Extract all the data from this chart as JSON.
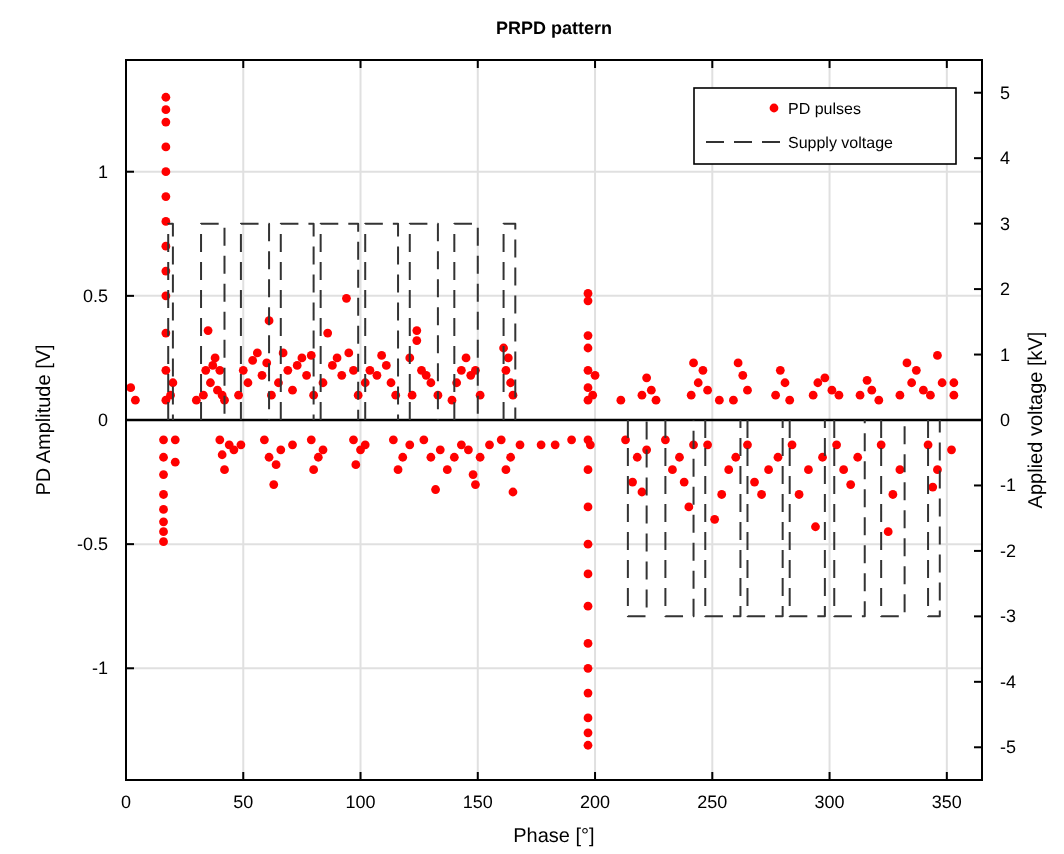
{
  "chart_data": {
    "type": "scatter",
    "title": "PRPD pattern",
    "xlabel": "Phase [°]",
    "ylabel": "PD Amplitude [V]",
    "y2label": "Applied voltage [kV]",
    "xlim": [
      0,
      365
    ],
    "xticks": [
      0,
      50,
      100,
      150,
      200,
      250,
      300,
      350
    ],
    "ylim": [
      -1.45,
      1.45
    ],
    "yticks": [
      -1,
      -0.5,
      0,
      0.5,
      1
    ],
    "y2lim": [
      -5.5,
      5.5
    ],
    "y2ticks": [
      -5,
      -4,
      -3,
      -2,
      -1,
      0,
      1,
      2,
      3,
      4,
      5
    ],
    "grid": true,
    "legend": "top right",
    "ref_lines": [
      {
        "axis": "y",
        "value": 0,
        "color": "#000000"
      }
    ],
    "series": [
      {
        "name": "PD pulses",
        "marker": "circle",
        "color": "#ff0000",
        "x": [
          2,
          4,
          17,
          17,
          17,
          17,
          17,
          17,
          17,
          17,
          17,
          17,
          17,
          17,
          17,
          19,
          20,
          30,
          33,
          34,
          35,
          36,
          37,
          38,
          39,
          40,
          41,
          42,
          48,
          50,
          52,
          54,
          56,
          58,
          60,
          61,
          62,
          65,
          67,
          69,
          71,
          73,
          75,
          77,
          79,
          80,
          84,
          86,
          88,
          90,
          92,
          94,
          95,
          97,
          99,
          102,
          104,
          107,
          109,
          111,
          113,
          115,
          121,
          122,
          124,
          124,
          126,
          128,
          130,
          133,
          139,
          141,
          143,
          145,
          147,
          149,
          151,
          161,
          162,
          163,
          164,
          165,
          197,
          197,
          197,
          197,
          197,
          197,
          197,
          199,
          200,
          211,
          220,
          222,
          224,
          226,
          241,
          242,
          244,
          246,
          248,
          253,
          259,
          261,
          263,
          265,
          277,
          279,
          281,
          283,
          293,
          295,
          298,
          301,
          304,
          313,
          316,
          318,
          321,
          330,
          333,
          335,
          337,
          340,
          343,
          346,
          348,
          353,
          353,
          16,
          16,
          16,
          16,
          16,
          16,
          16,
          16,
          21,
          21,
          40,
          41,
          42,
          44,
          46,
          49,
          59,
          61,
          63,
          64,
          66,
          71,
          79,
          80,
          82,
          84,
          97,
          98,
          100,
          102,
          114,
          116,
          118,
          121,
          127,
          130,
          132,
          134,
          137,
          140,
          143,
          146,
          148,
          149,
          151,
          155,
          160,
          162,
          164,
          165,
          168,
          177,
          183,
          190,
          197,
          197,
          197,
          197,
          197,
          197,
          197,
          197,
          197,
          197,
          197,
          197,
          198,
          213,
          216,
          218,
          220,
          222,
          230,
          233,
          236,
          238,
          240,
          242,
          248,
          251,
          254,
          257,
          260,
          265,
          268,
          271,
          274,
          278,
          284,
          287,
          291,
          294,
          297,
          303,
          306,
          309,
          312,
          322,
          325,
          327,
          330,
          342,
          344,
          346,
          352
        ],
        "values": [
          0.13,
          0.08,
          0.08,
          0.2,
          0.35,
          0.5,
          0.6,
          0.7,
          0.8,
          0.9,
          1.0,
          1.1,
          1.2,
          1.25,
          1.3,
          0.1,
          0.15,
          0.08,
          0.1,
          0.2,
          0.36,
          0.15,
          0.22,
          0.25,
          0.12,
          0.2,
          0.1,
          0.08,
          0.1,
          0.2,
          0.15,
          0.24,
          0.27,
          0.18,
          0.23,
          0.4,
          0.1,
          0.15,
          0.27,
          0.2,
          0.12,
          0.22,
          0.25,
          0.18,
          0.26,
          0.1,
          0.15,
          0.35,
          0.22,
          0.25,
          0.18,
          0.49,
          0.27,
          0.2,
          0.1,
          0.15,
          0.2,
          0.18,
          0.26,
          0.22,
          0.15,
          0.1,
          0.25,
          0.1,
          0.36,
          0.32,
          0.2,
          0.18,
          0.15,
          0.1,
          0.08,
          0.15,
          0.2,
          0.25,
          0.18,
          0.2,
          0.1,
          0.29,
          0.2,
          0.25,
          0.15,
          0.1,
          0.08,
          0.13,
          0.2,
          0.29,
          0.34,
          0.48,
          0.51,
          0.1,
          0.18,
          0.08,
          0.1,
          0.17,
          0.12,
          0.08,
          0.1,
          0.23,
          0.15,
          0.2,
          0.12,
          0.08,
          0.08,
          0.23,
          0.18,
          0.12,
          0.1,
          0.2,
          0.15,
          0.08,
          0.1,
          0.15,
          0.17,
          0.12,
          0.1,
          0.1,
          0.16,
          0.12,
          0.08,
          0.1,
          0.23,
          0.15,
          0.2,
          0.12,
          0.1,
          0.26,
          0.15,
          0.15,
          0.1,
          -0.08,
          -0.15,
          -0.22,
          -0.3,
          -0.36,
          -0.41,
          -0.45,
          -0.49,
          -0.08,
          -0.17,
          -0.08,
          -0.14,
          -0.2,
          -0.1,
          -0.12,
          -0.1,
          -0.08,
          -0.15,
          -0.26,
          -0.18,
          -0.12,
          -0.1,
          -0.08,
          -0.2,
          -0.15,
          -0.12,
          -0.08,
          -0.18,
          -0.12,
          -0.1,
          -0.08,
          -0.2,
          -0.15,
          -0.1,
          -0.08,
          -0.15,
          -0.28,
          -0.12,
          -0.2,
          -0.15,
          -0.1,
          -0.12,
          -0.22,
          -0.26,
          -0.15,
          -0.1,
          -0.08,
          -0.2,
          -0.15,
          -0.29,
          -0.1,
          -0.1,
          -0.1,
          -0.08,
          -0.08,
          -0.2,
          -0.35,
          -0.5,
          -0.62,
          -0.75,
          -0.9,
          -1.0,
          -1.1,
          -1.2,
          -1.26,
          -1.31,
          -0.1,
          -0.08,
          -0.25,
          -0.15,
          -0.29,
          -0.12,
          -0.08,
          -0.2,
          -0.15,
          -0.25,
          -0.35,
          -0.1,
          -0.1,
          -0.4,
          -0.3,
          -0.2,
          -0.15,
          -0.1,
          -0.25,
          -0.3,
          -0.2,
          -0.15,
          -0.1,
          -0.3,
          -0.2,
          -0.43,
          -0.15,
          -0.1,
          -0.2,
          -0.26,
          -0.15,
          -0.1,
          -0.45,
          -0.3,
          -0.2,
          -0.1,
          -0.27,
          -0.2,
          -0.12
        ]
      },
      {
        "name": "Supply voltage",
        "type": "line",
        "axis": "y2",
        "color": "#333333",
        "line_style": "dashed",
        "x": [
          18,
          18,
          20,
          20,
          null,
          32,
          32,
          42,
          42,
          null,
          49,
          49,
          61,
          61,
          null,
          66,
          66,
          80,
          80,
          null,
          83,
          83,
          99,
          99,
          null,
          102,
          102,
          116,
          116,
          null,
          121,
          121,
          133,
          133,
          null,
          140,
          140,
          150,
          150,
          null,
          161,
          161,
          166,
          166,
          null,
          214,
          214,
          222,
          222,
          null,
          230,
          230,
          242,
          242,
          null,
          247,
          247,
          262,
          262,
          null,
          265,
          265,
          280,
          280,
          null,
          283,
          283,
          298,
          298,
          null,
          302,
          302,
          315,
          315,
          null,
          322,
          322,
          332,
          332,
          null,
          342,
          342,
          347,
          347
        ],
        "values": [
          0,
          3,
          3,
          0,
          null,
          0,
          3,
          3,
          0,
          null,
          0,
          3,
          3,
          0,
          null,
          0,
          3,
          3,
          0,
          null,
          0,
          3,
          3,
          0,
          null,
          0,
          3,
          3,
          0,
          null,
          0,
          3,
          3,
          0,
          null,
          0,
          3,
          3,
          0,
          null,
          0,
          3,
          3,
          0,
          null,
          0,
          -3,
          -3,
          0,
          null,
          0,
          -3,
          -3,
          0,
          null,
          0,
          -3,
          -3,
          0,
          null,
          0,
          -3,
          -3,
          0,
          null,
          0,
          -3,
          -3,
          0,
          null,
          0,
          -3,
          -3,
          0,
          null,
          0,
          -3,
          -3,
          0,
          null,
          0,
          -3,
          -3,
          0
        ]
      }
    ]
  }
}
